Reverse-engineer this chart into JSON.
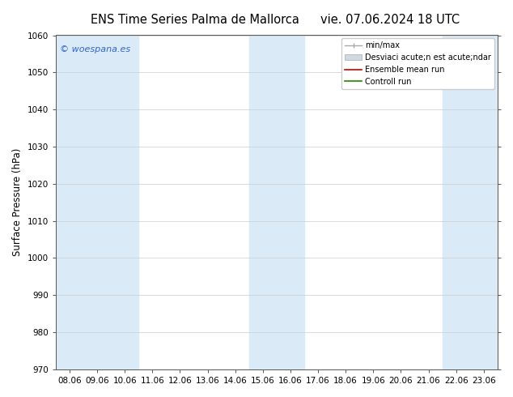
{
  "title_left": "ENS Time Series Palma de Mallorca",
  "title_right": "vie. 07.06.2024 18 UTC",
  "ylabel": "Surface Pressure (hPa)",
  "ylim": [
    970,
    1060
  ],
  "yticks": [
    970,
    980,
    990,
    1000,
    1010,
    1020,
    1030,
    1040,
    1050,
    1060
  ],
  "x_labels": [
    "08.06",
    "09.06",
    "10.06",
    "11.06",
    "12.06",
    "13.06",
    "14.06",
    "15.06",
    "16.06",
    "17.06",
    "18.06",
    "19.06",
    "20.06",
    "21.06",
    "22.06",
    "23.06"
  ],
  "shaded_indices": [
    0,
    1,
    2,
    7,
    8,
    14,
    15
  ],
  "shade_color": "#daeaf7",
  "watermark": "© woespana.es",
  "watermark_color": "#3366cc",
  "legend_entries": [
    "min/max",
    "Desviaci acute;n est acute;ndar",
    "Ensemble mean run",
    "Controll run"
  ],
  "bg_color": "#ffffff",
  "plot_bg_color": "#ffffff",
  "grid_color": "#cccccc",
  "title_fontsize": 10.5,
  "label_fontsize": 8.5,
  "tick_fontsize": 7.5
}
